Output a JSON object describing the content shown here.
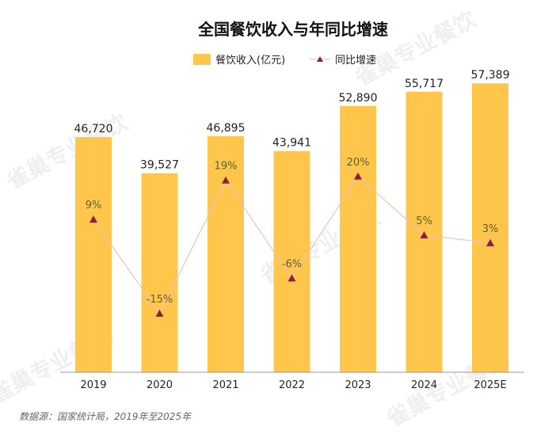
{
  "chart_data": {
    "type": "bar",
    "title": "全国餐饮收入与年同比增速",
    "categories": [
      "2019",
      "2020",
      "2021",
      "2022",
      "2023",
      "2024",
      "2025E"
    ],
    "series": [
      {
        "name": "餐饮收入(亿元)",
        "kind": "bar",
        "values": [
          46720,
          39527,
          46895,
          43941,
          52890,
          55717,
          57389
        ],
        "labels": [
          "46,720",
          "39,527",
          "46,895",
          "43,941",
          "52,890",
          "55,717",
          "57,389"
        ]
      },
      {
        "name": "同比增速",
        "kind": "line",
        "values": [
          9,
          -15,
          19,
          -6,
          20,
          5,
          3
        ],
        "labels": [
          "9%",
          "-15%",
          "19%",
          "-6%",
          "20%",
          "5%",
          "3%"
        ]
      }
    ],
    "ylim": [
      0,
      70000
    ],
    "y2lim": [
      -30,
      60
    ],
    "legend_position": "top-center",
    "grid": false
  },
  "source_note": "数据源：国家统计局，2019年至2025年",
  "watermark_text": "雀巢专业餐饮",
  "colors": {
    "bar": "#FFC64B",
    "line": "#E8C4C4",
    "marker": "#8E1E3C",
    "growth_label": "#5A6330",
    "text": "#222222",
    "axis": "#9a9a9a"
  }
}
